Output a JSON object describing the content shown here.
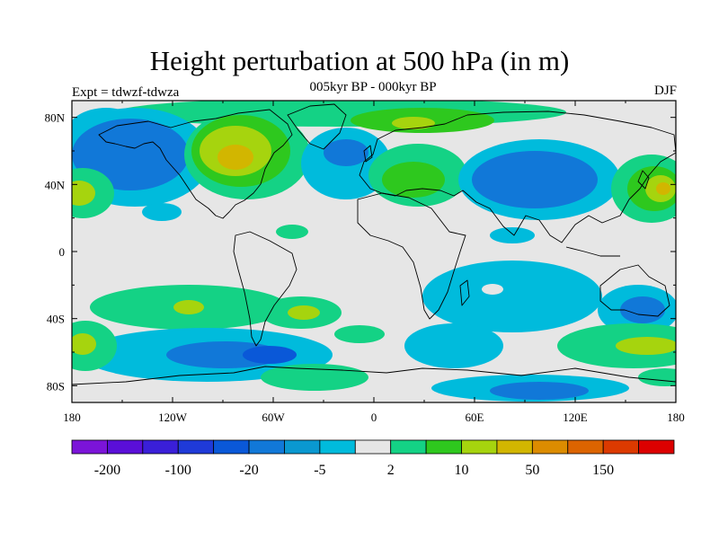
{
  "title": "Height perturbation at 500 hPa (in m)",
  "subtitle": "005kyr BP - 000kyr BP",
  "experiment": "Expt = tdwzf-tdwza",
  "season": "DJF",
  "map": {
    "lon_range": [
      -180,
      180
    ],
    "lat_range": [
      -90,
      90
    ],
    "x_tick_labels": [
      "180",
      "120W",
      "60W",
      "0",
      "60E",
      "120E",
      "180"
    ],
    "y_tick_labels": [
      "80N",
      "40N",
      "0",
      "40S",
      "80S"
    ]
  },
  "colorbar": {
    "colors": [
      "#7b14d8",
      "#5a0fd8",
      "#3a1fd8",
      "#1f3ad8",
      "#0a58d8",
      "#1178d8",
      "#0a98d0",
      "#00bbdc",
      "#e6e6e6",
      "#14d285",
      "#2ec81e",
      "#a6d40e",
      "#d2b600",
      "#dc8c00",
      "#dc6400",
      "#dc3a00",
      "#dc0000"
    ],
    "tick_labels": [
      "-200",
      "-100",
      "-20",
      "-5",
      "2",
      "10",
      "50",
      "150"
    ]
  },
  "colors": {
    "neutral": "#e6e6e6",
    "neg_weak": "#00bbdc",
    "neg_mid": "#1178d8",
    "neg_strong": "#0a58d8",
    "pos_weak": "#14d285",
    "pos_mid": "#2ec81e",
    "pos_strong": "#a6d40e",
    "pos_max": "#d2b600"
  }
}
